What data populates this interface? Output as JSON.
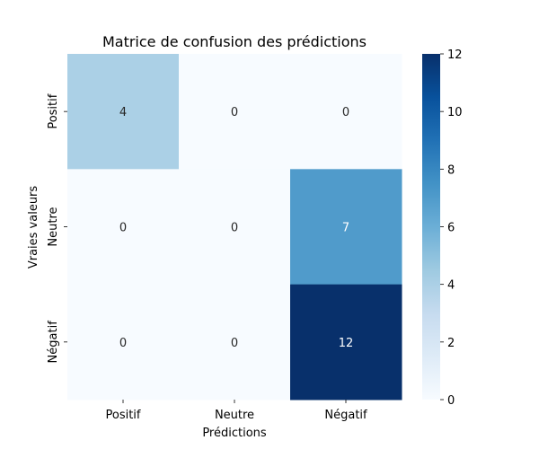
{
  "chart_data": {
    "type": "heatmap",
    "title": "Matrice de confusion des prédictions",
    "xlabel": "Prédictions",
    "ylabel": "Vraies valeurs",
    "x_categories": [
      "Positif",
      "Neutre",
      "Négatif"
    ],
    "y_categories": [
      "Positif",
      "Neutre",
      "Négatif"
    ],
    "values": [
      [
        4,
        0,
        0
      ],
      [
        0,
        0,
        7
      ],
      [
        0,
        0,
        12
      ]
    ],
    "colorbar": {
      "min": 0,
      "max": 12,
      "ticks": [
        0,
        2,
        4,
        6,
        8,
        10,
        12
      ]
    },
    "colormap": "Blues",
    "colors": {
      "low": "#f7fbff",
      "high": "#08306b"
    }
  }
}
